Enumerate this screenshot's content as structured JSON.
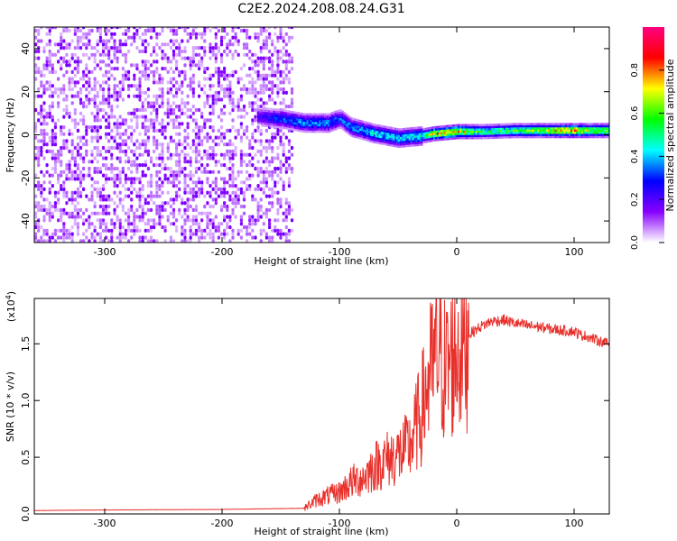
{
  "title": "C2E2.2024.208.08.24.G31",
  "chart_data": [
    {
      "type": "heatmap",
      "xlabel": "Height of straight line (km)",
      "ylabel": "Frequency (Hz)",
      "xlim": [
        -360,
        130
      ],
      "ylim": [
        -50,
        50
      ],
      "x_ticks": [
        -300,
        -200,
        -100,
        0,
        100
      ],
      "y_ticks": [
        -40,
        -20,
        0,
        20,
        40
      ],
      "colorbar": {
        "label": "Normalized spectral amplitude",
        "range": [
          0,
          1
        ],
        "ticks": [
          "0.0",
          "0.2",
          "0.4",
          "0.6",
          "0.8"
        ],
        "colors": [
          "#ffffff",
          "#8800ff",
          "#0000ff",
          "#00ffff",
          "#00ff00",
          "#ffff00",
          "#ff0000",
          "#ff0080"
        ]
      },
      "noise_region": {
        "x_range": [
          -360,
          -140
        ],
        "amplitude": 0.15
      },
      "signal_track": [
        {
          "x": -170,
          "f": 8,
          "amp": 0.25
        },
        {
          "x": -150,
          "f": 7,
          "amp": 0.35
        },
        {
          "x": -130,
          "f": 5,
          "amp": 0.4
        },
        {
          "x": -110,
          "f": 5,
          "amp": 0.4
        },
        {
          "x": -100,
          "f": 7,
          "amp": 0.35
        },
        {
          "x": -90,
          "f": 3,
          "amp": 0.4
        },
        {
          "x": -70,
          "f": 0,
          "amp": 0.45
        },
        {
          "x": -50,
          "f": -2,
          "amp": 0.45
        },
        {
          "x": -30,
          "f": -1,
          "amp": 0.5
        },
        {
          "x": -20,
          "f": 0,
          "amp": 0.8
        },
        {
          "x": 0,
          "f": 1,
          "amp": 0.85
        },
        {
          "x": 20,
          "f": 1,
          "amp": 0.55
        },
        {
          "x": 50,
          "f": 1.5,
          "amp": 0.6
        },
        {
          "x": 80,
          "f": 1.5,
          "amp": 0.75
        },
        {
          "x": 100,
          "f": 1.5,
          "amp": 0.85
        },
        {
          "x": 110,
          "f": 1.5,
          "amp": 0.7
        },
        {
          "x": 130,
          "f": 1.5,
          "amp": 0.65
        }
      ]
    },
    {
      "type": "line",
      "xlabel": "Height of straight line (km)",
      "ylabel": "SNR (10 * v/v)",
      "y_multiplier": "(x10",
      "y_multiplier_exp": "4",
      "y_multiplier_close": ")",
      "xlim": [
        -360,
        130
      ],
      "ylim": [
        0,
        19000
      ],
      "x_ticks": [
        -300,
        -200,
        -100,
        0,
        100
      ],
      "y_ticks": [
        "0.0",
        "0.5",
        "1.0",
        "1.5"
      ],
      "y_tick_values": [
        0,
        5000,
        10000,
        15000
      ],
      "color": "#e8302b",
      "series": [
        {
          "x": [
            -360,
            -300,
            -200,
            -130,
            -120,
            -110,
            -100,
            -90,
            -80,
            -70,
            -60,
            -50,
            -40,
            -30,
            -25,
            -20,
            -15,
            -10,
            -5,
            0,
            10,
            20,
            30,
            40,
            50,
            60,
            70,
            80,
            90,
            100,
            105,
            110,
            120,
            130
          ],
          "values": [
            300,
            350,
            400,
            500,
            1200,
            1600,
            1900,
            2800,
            3200,
            4200,
            4800,
            5200,
            6000,
            9000,
            11500,
            13000,
            14500,
            12500,
            13500,
            14500,
            15800,
            16500,
            17000,
            17100,
            16800,
            16600,
            16500,
            16300,
            16200,
            16100,
            15800,
            15700,
            15300,
            15000
          ]
        }
      ]
    }
  ]
}
